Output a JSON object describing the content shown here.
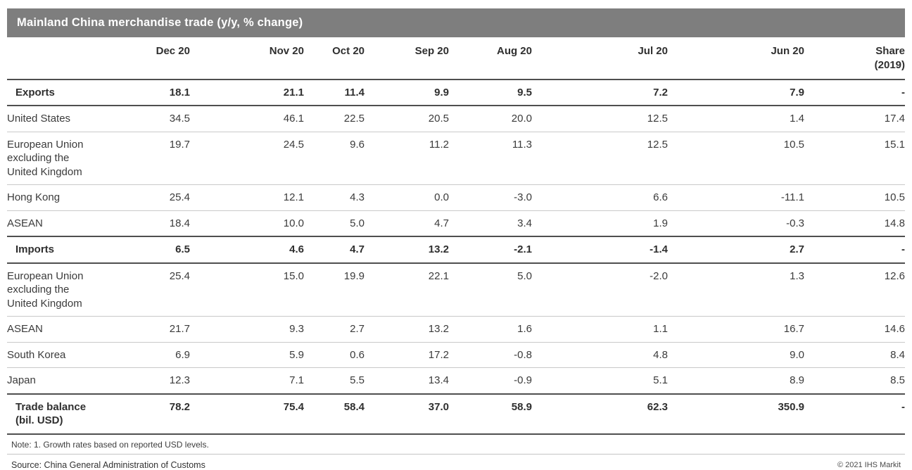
{
  "title": "Mainland China merchandise trade (y/y, % change)",
  "chart_data": {
    "type": "table",
    "title": "Mainland China merchandise trade (y/y, % change)",
    "columns": [
      "Dec 20",
      "Nov 20",
      "Oct 20",
      "Sep 20",
      "Aug 20",
      "Jul 20",
      "Jun 20"
    ],
    "share_column": {
      "line1": "Share",
      "line2": "(2019)"
    },
    "rows": [
      {
        "label": "Exports",
        "bold": true,
        "values": [
          "18.1",
          "21.1",
          "11.4",
          "9.9",
          "9.5",
          "7.2",
          "7.9",
          "-"
        ]
      },
      {
        "label": "United States",
        "bold": false,
        "values": [
          "34.5",
          "46.1",
          "22.5",
          "20.5",
          "20.0",
          "12.5",
          "1.4",
          "17.4"
        ]
      },
      {
        "label": "European Union\nexcluding the\nUnited Kingdom",
        "bold": false,
        "values": [
          "19.7",
          "24.5",
          "9.6",
          "11.2",
          "11.3",
          "12.5",
          "10.5",
          "15.1"
        ]
      },
      {
        "label": "Hong Kong",
        "bold": false,
        "values": [
          "25.4",
          "12.1",
          "4.3",
          "0.0",
          "-3.0",
          "6.6",
          "-11.1",
          "10.5"
        ]
      },
      {
        "label": "ASEAN",
        "bold": false,
        "values": [
          "18.4",
          "10.0",
          "5.0",
          "4.7",
          "3.4",
          "1.9",
          "-0.3",
          "14.8"
        ]
      },
      {
        "label": "Imports",
        "bold": true,
        "values": [
          "6.5",
          "4.6",
          "4.7",
          "13.2",
          "-2.1",
          "-1.4",
          "2.7",
          "-"
        ]
      },
      {
        "label": "European Union\nexcluding the\nUnited Kingdom",
        "bold": false,
        "values": [
          "25.4",
          "15.0",
          "19.9",
          "22.1",
          "5.0",
          "-2.0",
          "1.3",
          "12.6"
        ]
      },
      {
        "label": "ASEAN",
        "bold": false,
        "values": [
          "21.7",
          "9.3",
          "2.7",
          "13.2",
          "1.6",
          "1.1",
          "16.7",
          "14.6"
        ]
      },
      {
        "label": "South Korea",
        "bold": false,
        "values": [
          "6.9",
          "5.9",
          "0.6",
          "17.2",
          "-0.8",
          "4.8",
          "9.0",
          "8.4"
        ]
      },
      {
        "label": "Japan",
        "bold": false,
        "values": [
          "12.3",
          "7.1",
          "5.5",
          "13.4",
          "-0.9",
          "5.1",
          "8.9",
          "8.5"
        ]
      },
      {
        "label": "Trade balance\n(bil. USD)",
        "bold": true,
        "values": [
          "78.2",
          "75.4",
          "58.4",
          "37.0",
          "58.9",
          "62.3",
          "350.9",
          "-"
        ]
      }
    ]
  },
  "note": "Note: 1. Growth rates based on reported USD levels.",
  "source": "Source: China General Administration of Customs",
  "copyright": "© 2021 IHS Markit",
  "colors": {
    "title_bar": "#7e7e7e",
    "heavy_border": "#4f4f4f",
    "light_border": "#c9c9c9",
    "text": "#3b3b3b"
  }
}
